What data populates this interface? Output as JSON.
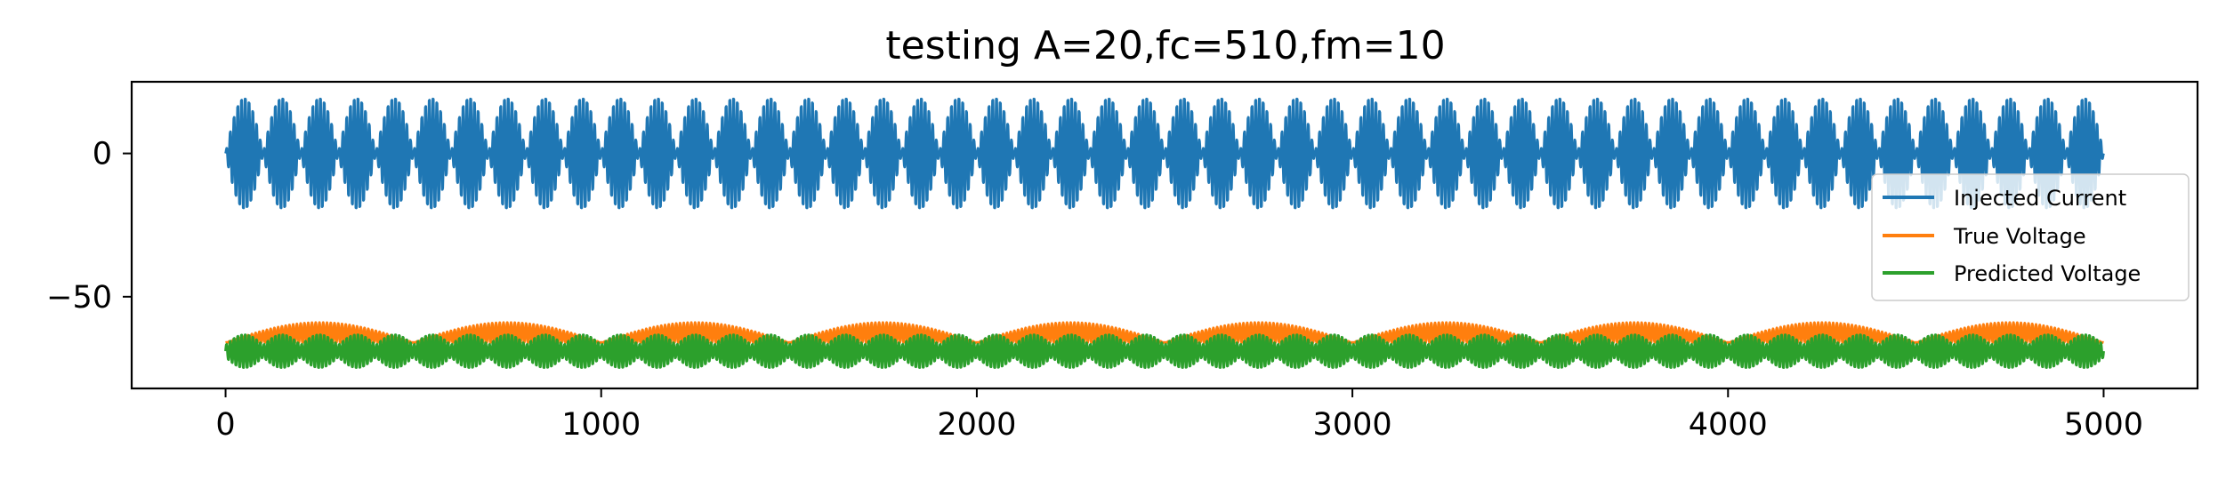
{
  "chart_data": {
    "type": "line",
    "title": "testing A=20,fc=510,fm=10",
    "xlabel": "",
    "ylabel": "",
    "xlim": [
      -250,
      5250
    ],
    "ylim": [
      -82,
      25
    ],
    "x_ticks": [
      0,
      1000,
      2000,
      3000,
      4000,
      5000
    ],
    "x_tick_labels": [
      "0",
      "1000",
      "2000",
      "3000",
      "4000",
      "5000"
    ],
    "y_ticks": [
      0,
      -50
    ],
    "y_tick_labels": [
      "0",
      "−50"
    ],
    "grid": false,
    "legend_position": "center-right",
    "series": [
      {
        "name": "Injected Current",
        "color": "#1f77b4",
        "x_range": [
          0,
          5000
        ],
        "description_values": {
          "center": 0,
          "amplitude": 20,
          "carrier_period_samples": 10,
          "envelope_period_samples": 100
        }
      },
      {
        "name": "True Voltage",
        "color": "#ff7f0e",
        "x_range": [
          0,
          5000
        ],
        "description_values": {
          "low": -66,
          "high": -59,
          "envelope_period_samples": 500
        }
      },
      {
        "name": "Predicted Voltage",
        "color": "#2ca02c",
        "x_range": [
          0,
          5000
        ],
        "description_values": {
          "low": -75,
          "high": -63,
          "envelope_period_samples": 100
        }
      }
    ]
  }
}
